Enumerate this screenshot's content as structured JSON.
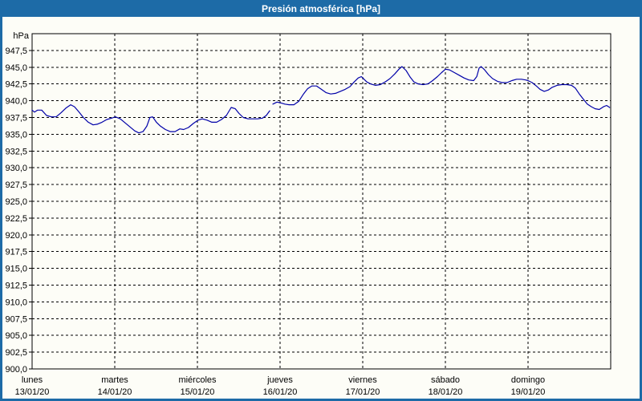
{
  "window": {
    "title": "Presión atmosférica [hPa]"
  },
  "colors": {
    "chrome": "#1d6ba7",
    "panel": "#fdfdf7",
    "title_text": "#ffffff",
    "axis": "#000000",
    "grid": "#000000",
    "line": "#0000a8"
  },
  "chart_data": {
    "type": "line",
    "title": "Presión atmosférica [hPa]",
    "ylabel": "hPa",
    "ylim": [
      900,
      950
    ],
    "ytick_step": 2.5,
    "yticks": [
      "947,5",
      "945,0",
      "942,5",
      "940,0",
      "937,5",
      "935,0",
      "932,5",
      "930,0",
      "927,5",
      "925,0",
      "922,5",
      "920,0",
      "917,5",
      "915,0",
      "912,5",
      "910,0",
      "907,5",
      "905,0",
      "902,5",
      "900,0"
    ],
    "grid": "dashed",
    "legend": "none",
    "x_days": [
      {
        "name": "lunes",
        "date": "13/01/20"
      },
      {
        "name": "martes",
        "date": "14/01/20"
      },
      {
        "name": "miércoles",
        "date": "15/01/20"
      },
      {
        "name": "jueves",
        "date": "16/01/20"
      },
      {
        "name": "viernes",
        "date": "17/01/20"
      },
      {
        "name": "sábado",
        "date": "18/01/20"
      },
      {
        "name": "domingo",
        "date": "19/01/20"
      }
    ],
    "x_unit": "hours_since_monday_00",
    "x_span_hours": 168,
    "series": [
      {
        "name": "presión atmosférica",
        "unit": "hPa",
        "color": "#0000a8",
        "segments": [
          [
            [
              0,
              938.6
            ],
            [
              0.7,
              938.3
            ],
            [
              1.6,
              938.6
            ],
            [
              2.8,
              938.6
            ],
            [
              4.2,
              937.8
            ],
            [
              5.6,
              937.6
            ],
            [
              7,
              937.6
            ],
            [
              8.4,
              938.2
            ],
            [
              9.8,
              938.9
            ],
            [
              11.2,
              939.4
            ],
            [
              12.3,
              939.1
            ],
            [
              13.5,
              938.4
            ],
            [
              14.9,
              937.5
            ],
            [
              16.3,
              936.8
            ],
            [
              17.7,
              936.4
            ],
            [
              18.9,
              936.5
            ],
            [
              20.3,
              936.8
            ],
            [
              21.7,
              937.2
            ],
            [
              23.1,
              937.4
            ],
            [
              24.2,
              937.6
            ],
            [
              25.6,
              937.3
            ],
            [
              27,
              936.7
            ],
            [
              28.4,
              936.1
            ],
            [
              29.8,
              935.5
            ],
            [
              31,
              935.2
            ],
            [
              32.2,
              935.4
            ],
            [
              33.3,
              936.2
            ],
            [
              34.2,
              937.5
            ],
            [
              35,
              937.6
            ],
            [
              36.1,
              936.8
            ],
            [
              37.3,
              936.2
            ],
            [
              38.7,
              935.7
            ],
            [
              40.1,
              935.4
            ],
            [
              41.5,
              935.4
            ],
            [
              42.9,
              935.8
            ],
            [
              44,
              935.7
            ],
            [
              45.4,
              936
            ],
            [
              46.8,
              936.6
            ],
            [
              48.2,
              937.1
            ],
            [
              49.4,
              937.3
            ],
            [
              50.8,
              937.1
            ],
            [
              52.2,
              936.8
            ],
            [
              53.6,
              936.8
            ],
            [
              55,
              937.2
            ],
            [
              56.4,
              937.8
            ],
            [
              57.8,
              939
            ],
            [
              59,
              938.8
            ],
            [
              60.1,
              938.1
            ],
            [
              61.3,
              937.5
            ],
            [
              62.7,
              937.3
            ],
            [
              64.1,
              937.3
            ],
            [
              65.5,
              937.3
            ],
            [
              66.9,
              937.4
            ],
            [
              68,
              937.8
            ],
            [
              69,
              938.5
            ]
          ],
          [
            [
              69.9,
              939.5
            ],
            [
              71.1,
              939.8
            ],
            [
              72,
              939.7
            ],
            [
              73.4,
              939.5
            ],
            [
              74.6,
              939.4
            ],
            [
              76,
              939.4
            ],
            [
              77.4,
              939.9
            ],
            [
              78.8,
              941
            ],
            [
              80,
              941.8
            ],
            [
              81.2,
              942.2
            ],
            [
              82.6,
              942.2
            ],
            [
              84,
              941.7
            ],
            [
              85.4,
              941.2
            ],
            [
              86.7,
              941
            ],
            [
              88.1,
              941.1
            ],
            [
              89.5,
              941.4
            ],
            [
              90.9,
              941.7
            ],
            [
              92.3,
              942.1
            ],
            [
              93.5,
              942.8
            ],
            [
              94.7,
              943.4
            ],
            [
              95.6,
              943.6
            ],
            [
              96,
              943.4
            ],
            [
              97.2,
              942.8
            ],
            [
              98.3,
              942.5
            ],
            [
              99.7,
              942.3
            ],
            [
              101.1,
              942.4
            ],
            [
              102.5,
              942.8
            ],
            [
              103.9,
              943.3
            ],
            [
              105.3,
              944
            ],
            [
              106.5,
              944.7
            ],
            [
              107.4,
              945.1
            ],
            [
              108.6,
              944.5
            ],
            [
              109.8,
              943.5
            ],
            [
              110.9,
              942.8
            ],
            [
              112.1,
              942.5
            ],
            [
              113.5,
              942.4
            ],
            [
              114.9,
              942.5
            ],
            [
              116.3,
              943
            ],
            [
              117.7,
              943.6
            ],
            [
              118.9,
              944.2
            ],
            [
              120,
              944.7
            ],
            [
              121.2,
              944.6
            ],
            [
              122.6,
              944.2
            ],
            [
              124,
              943.8
            ],
            [
              125.4,
              943.4
            ],
            [
              126.8,
              943.1
            ],
            [
              128.2,
              943
            ],
            [
              129.1,
              943.6
            ],
            [
              129.8,
              944.9
            ],
            [
              130.4,
              945.1
            ],
            [
              131.4,
              944.6
            ],
            [
              132.5,
              943.9
            ],
            [
              133.7,
              943.3
            ],
            [
              135.1,
              942.9
            ],
            [
              136.5,
              942.7
            ],
            [
              137.9,
              942.7
            ],
            [
              139.3,
              943
            ],
            [
              140.7,
              943.2
            ],
            [
              142.1,
              943.2
            ],
            [
              143.3,
              943.1
            ],
            [
              144,
              943
            ],
            [
              145.2,
              942.7
            ],
            [
              146.4,
              942.2
            ],
            [
              147.5,
              941.7
            ],
            [
              148.7,
              941.4
            ],
            [
              149.9,
              941.6
            ],
            [
              151,
              942
            ],
            [
              152.4,
              942.3
            ],
            [
              153.8,
              942.4
            ],
            [
              155.2,
              942.4
            ],
            [
              156.6,
              942.3
            ],
            [
              157.7,
              941.9
            ],
            [
              158.9,
              941
            ],
            [
              160.1,
              940.2
            ],
            [
              161.2,
              939.5
            ],
            [
              162.4,
              939.1
            ],
            [
              163.5,
              938.8
            ],
            [
              164.7,
              938.7
            ],
            [
              165.9,
              939.1
            ],
            [
              166.8,
              939.3
            ],
            [
              167.7,
              939
            ]
          ]
        ]
      }
    ]
  }
}
